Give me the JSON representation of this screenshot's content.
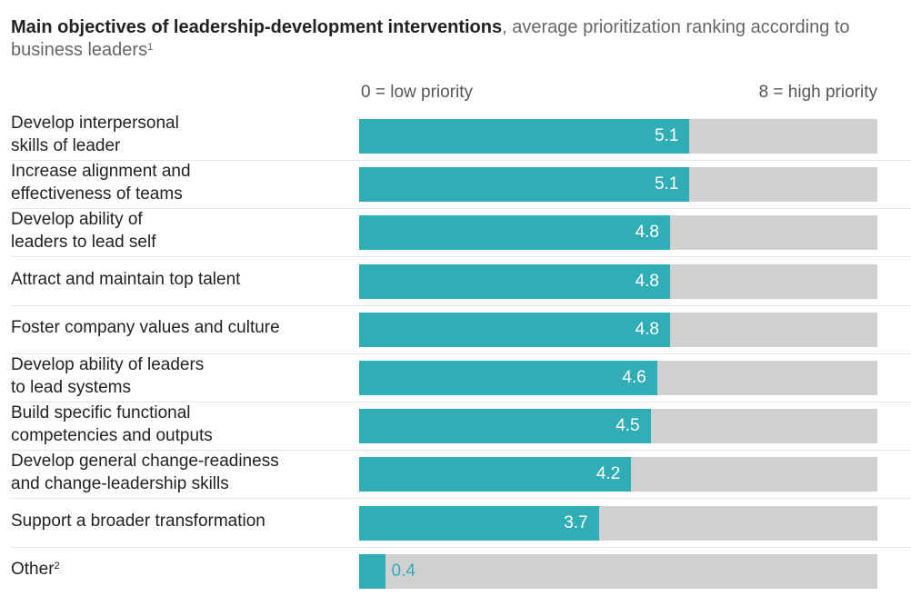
{
  "title": {
    "bold": "Main objectives of leadership-development interventions",
    "rest": ", average prioritization ranking according to business leaders",
    "footnote": "1"
  },
  "scale": {
    "low_label": "0 = low priority",
    "high_label": "8 = high priority"
  },
  "chart_data": {
    "type": "bar",
    "orientation": "horizontal",
    "title": "Main objectives of leadership-development interventions, average prioritization ranking according to business leaders",
    "xlabel": "",
    "ylabel": "",
    "xlim": [
      0,
      8
    ],
    "scale_labels": [
      "0 = low priority",
      "8 = high priority"
    ],
    "categories": [
      "Develop interpersonal skills of leader",
      "Increase alignment and effectiveness of teams",
      "Develop ability of leaders to lead self",
      "Attract and maintain top talent",
      "Foster company values and culture",
      "Develop ability of leaders to lead systems",
      "Build specific functional competencies and outputs",
      "Develop general change-readiness and change-leadership skills",
      "Support a broader transformation",
      "Other"
    ],
    "values": [
      5.1,
      5.1,
      4.8,
      4.8,
      4.8,
      4.6,
      4.5,
      4.2,
      3.7,
      0.4
    ],
    "colors": {
      "fill": "#31adb6",
      "track": "#d0d0d0"
    }
  },
  "rows": [
    {
      "line1": "Develop interpersonal",
      "line2": "skills of leader",
      "sup": "",
      "value": "5.1"
    },
    {
      "line1": "Increase alignment and",
      "line2": "effectiveness of teams",
      "sup": "",
      "value": "5.1"
    },
    {
      "line1": "Develop ability of",
      "line2": "leaders to lead self",
      "sup": "",
      "value": "4.8"
    },
    {
      "line1": "Attract and maintain top talent",
      "line2": "",
      "sup": "",
      "value": "4.8"
    },
    {
      "line1": "Foster company values and culture",
      "line2": "",
      "sup": "",
      "value": "4.8"
    },
    {
      "line1": "Develop ability of leaders",
      "line2": "to lead systems",
      "sup": "",
      "value": "4.6"
    },
    {
      "line1": "Build specific functional",
      "line2": "competencies and outputs",
      "sup": "",
      "value": "4.5"
    },
    {
      "line1": "Develop general change-readiness",
      "line2": "and change-leadership skills",
      "sup": "",
      "value": "4.2"
    },
    {
      "line1": "Support a broader transformation",
      "line2": "",
      "sup": "",
      "value": "3.7"
    },
    {
      "line1": "Other",
      "line2": "",
      "sup": "2",
      "value": "0.4"
    }
  ]
}
